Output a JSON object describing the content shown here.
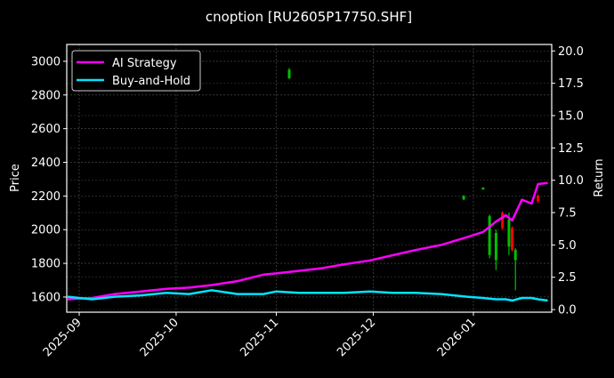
{
  "chart_data": {
    "type": "line",
    "title": "cnoption [RU2605P17750.SHF]",
    "xlabel": "",
    "ylabel": "Price",
    "ylabel_right": "Return",
    "x_ticks": [
      "2025-09",
      "2025-10",
      "2025-11",
      "2025-12",
      "2026-01"
    ],
    "y_left_ticks": [
      1600,
      1800,
      2000,
      2200,
      2400,
      2600,
      2800,
      3000
    ],
    "y_left_range": [
      1510,
      3100
    ],
    "y_right_ticks": [
      "0.0",
      "2.5",
      "5.0",
      "7.5",
      "10.0",
      "12.5",
      "15.0",
      "17.5",
      "20.0"
    ],
    "y_right_range": [
      -0.2,
      20.5
    ],
    "grid": true,
    "legend_position": "upper left",
    "legend": [
      {
        "label": "AI Strategy",
        "color": "#ff00ff"
      },
      {
        "label": "Buy-and-Hold",
        "color": "#00e5ff"
      }
    ],
    "series": [
      {
        "name": "AI Strategy",
        "axis": "right",
        "color": "#ff00ff",
        "x_dates": [
          "2025-08-28",
          "2025-09-05",
          "2025-09-12",
          "2025-09-20",
          "2025-09-28",
          "2025-10-05",
          "2025-10-12",
          "2025-10-20",
          "2025-10-28",
          "2025-11-01",
          "2025-11-08",
          "2025-11-15",
          "2025-11-22",
          "2025-11-30",
          "2025-12-07",
          "2025-12-14",
          "2025-12-22",
          "2025-12-30",
          "2026-01-04",
          "2026-01-08",
          "2026-01-11",
          "2026-01-13",
          "2026-01-16",
          "2026-01-19",
          "2026-01-21",
          "2026-01-24"
        ],
        "values": [
          0.8,
          0.9,
          1.2,
          1.4,
          1.6,
          1.7,
          1.9,
          2.2,
          2.7,
          2.8,
          3.0,
          3.2,
          3.5,
          3.8,
          4.2,
          4.6,
          5.0,
          5.6,
          6.0,
          6.8,
          7.3,
          6.9,
          8.5,
          8.2,
          9.7,
          9.8
        ]
      },
      {
        "name": "Buy-and-Hold",
        "axis": "right",
        "color": "#00e5ff",
        "x_dates": [
          "2025-08-28",
          "2025-09-05",
          "2025-09-12",
          "2025-09-20",
          "2025-09-28",
          "2025-10-05",
          "2025-10-12",
          "2025-10-20",
          "2025-10-28",
          "2025-11-01",
          "2025-11-08",
          "2025-11-15",
          "2025-11-22",
          "2025-11-30",
          "2025-12-07",
          "2025-12-14",
          "2025-12-22",
          "2025-12-30",
          "2026-01-04",
          "2026-01-08",
          "2026-01-11",
          "2026-01-13",
          "2026-01-16",
          "2026-01-19",
          "2026-01-21",
          "2026-01-24"
        ],
        "values": [
          1.0,
          0.8,
          1.0,
          1.1,
          1.3,
          1.2,
          1.5,
          1.2,
          1.2,
          1.4,
          1.3,
          1.3,
          1.3,
          1.4,
          1.3,
          1.3,
          1.2,
          1.0,
          0.9,
          0.8,
          0.8,
          0.7,
          0.9,
          0.9,
          0.8,
          0.7
        ]
      }
    ],
    "candles": [
      {
        "date": "2025-11-05",
        "open": 2950,
        "close": 2900,
        "high": 2960,
        "low": 2895,
        "color": "#00c000"
      },
      {
        "date": "2025-12-29",
        "open": 2200,
        "close": 2180,
        "high": 2205,
        "low": 2175,
        "color": "#00c000"
      },
      {
        "date": "2026-01-04",
        "open": 2250,
        "close": 2240,
        "high": 2252,
        "low": 2238,
        "color": "#00c000"
      },
      {
        "date": "2026-01-06",
        "open": 2080,
        "close": 1850,
        "high": 2090,
        "low": 1830,
        "color": "#00c000"
      },
      {
        "date": "2026-01-08",
        "open": 1980,
        "close": 1820,
        "high": 2000,
        "low": 1760,
        "color": "#00c000"
      },
      {
        "date": "2026-01-10",
        "open": 2100,
        "close": 2010,
        "high": 2110,
        "low": 2000,
        "color": "#ff0000"
      },
      {
        "date": "2026-01-12",
        "open": 2060,
        "close": 1900,
        "high": 2100,
        "low": 1850,
        "color": "#00c000"
      },
      {
        "date": "2026-01-13",
        "open": 2010,
        "close": 1880,
        "high": 2020,
        "low": 1870,
        "color": "#ff0000"
      },
      {
        "date": "2026-01-14",
        "open": 1880,
        "close": 1820,
        "high": 1890,
        "low": 1640,
        "color": "#00c000"
      },
      {
        "date": "2026-01-21",
        "open": 2200,
        "close": 2170,
        "high": 2210,
        "low": 2160,
        "color": "#ff0000"
      }
    ]
  },
  "figure": {
    "title": "cnoption [RU2605P17750.SHF]",
    "y_left_label": "Price",
    "y_right_label": "Return",
    "legend_items": [
      "AI Strategy",
      "Buy-and-Hold"
    ]
  }
}
